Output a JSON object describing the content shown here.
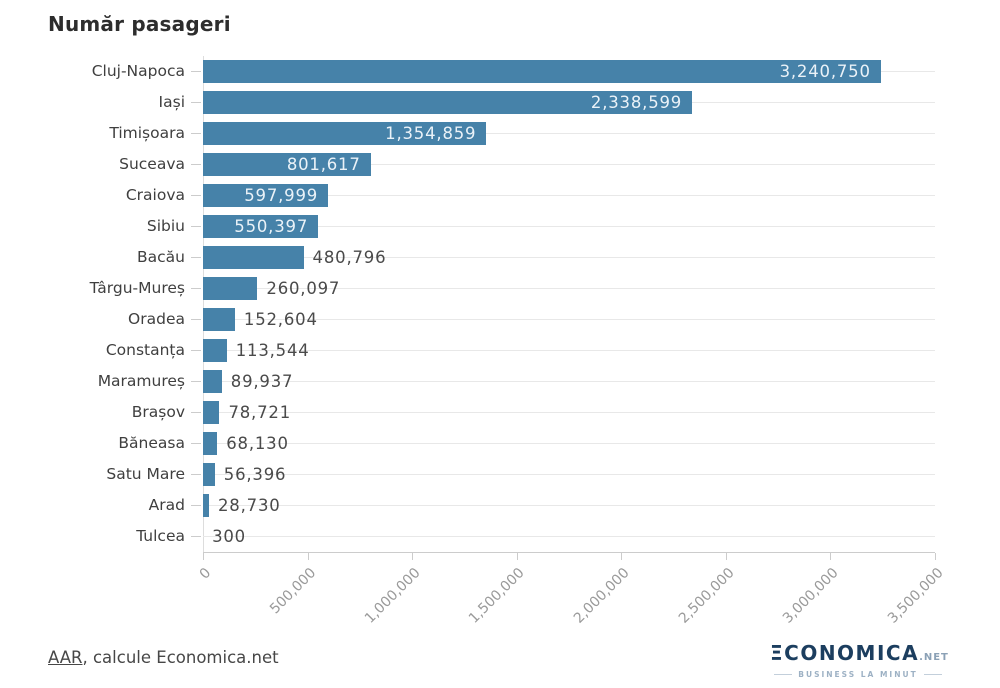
{
  "title": "Număr pasageri",
  "footer": {
    "source_link": "AAR",
    "source_rest": ", calcule Economica.net"
  },
  "logo": {
    "wordmark_initial": "Ξ",
    "wordmark_rest": "CONOMICA",
    "suffix": ".NET",
    "tagline": "BUSINESS LA MINUT"
  },
  "colors": {
    "bar": "#4682a9",
    "value_inside": "#eaf2f8",
    "value_outside": "#4a4a4a",
    "gridline": "#e8e8e8",
    "axis": "#cccccc",
    "logo_navy": "#1c3e5f"
  },
  "chart_data": {
    "type": "bar",
    "orientation": "horizontal",
    "title": "Număr pasageri",
    "categories": [
      "Cluj-Napoca",
      "Iași",
      "Timișoara",
      "Suceava",
      "Craiova",
      "Sibiu",
      "Bacău",
      "Târgu-Mureș",
      "Oradea",
      "Constanța",
      "Maramureș",
      "Brașov",
      "Băneasa",
      "Satu Mare",
      "Arad",
      "Tulcea"
    ],
    "values": [
      3240750,
      2338599,
      1354859,
      801617,
      597999,
      550397,
      480796,
      260097,
      152604,
      113544,
      89937,
      78721,
      68130,
      56396,
      28730,
      300
    ],
    "value_labels": [
      "3,240,750",
      "2,338,599",
      "1,354,859",
      "801,617",
      "597,999",
      "550,397",
      "480,796",
      "260,097",
      "152,604",
      "113,544",
      "89,937",
      "78,721",
      "68,130",
      "56,396",
      "28,730",
      "300"
    ],
    "label_inside": [
      true,
      true,
      true,
      true,
      true,
      true,
      false,
      false,
      false,
      false,
      false,
      false,
      false,
      false,
      false,
      false
    ],
    "xlim": [
      0,
      3500000
    ],
    "x_tick_labels": [
      "0",
      "500,000",
      "1,000,000",
      "1,500,000",
      "2,000,000",
      "2,500,000",
      "3,000,000",
      "3,500,000"
    ],
    "x_tick_rotation": -45,
    "grid": true,
    "xlabel": "",
    "ylabel": ""
  }
}
